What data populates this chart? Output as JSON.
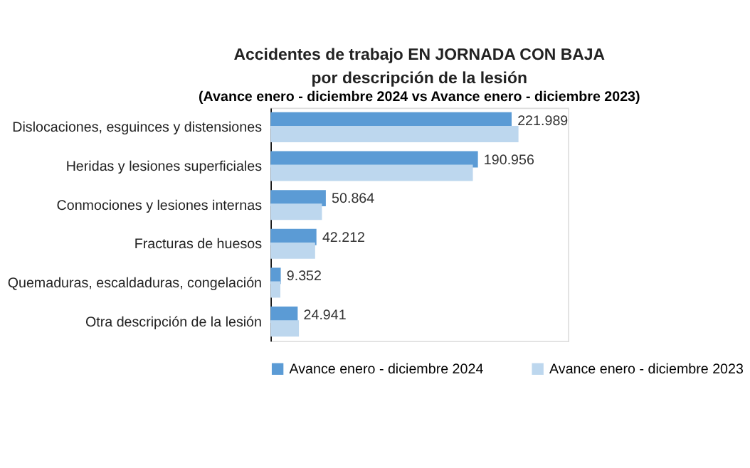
{
  "chart_data": {
    "type": "bar",
    "orientation": "horizontal",
    "title": "Accidentes de trabajo EN JORNADA CON BAJA\npor descripción de la lesión",
    "subtitle": "(Avance enero - diciembre 2024 vs Avance enero - diciembre 2023)",
    "categories": [
      "Dislocaciones, esguinces y distensiones",
      "Heridas y lesiones superficiales",
      "Conmociones y lesiones internas",
      "Fracturas de huesos",
      "Quemaduras, escaldaduras, congelación",
      "Otra descripción de la lesión"
    ],
    "series": [
      {
        "name": "Avance enero - diciembre 2024",
        "color": "#5b9bd5",
        "values": [
          221989,
          190956,
          50864,
          42212,
          9352,
          24941
        ],
        "value_labels": [
          "221.989",
          "190.956",
          "50.864",
          "42.212",
          "9.352",
          "24.941"
        ]
      },
      {
        "name": "Avance enero - diciembre 2023",
        "color": "#bdd7ee",
        "values": [
          228300,
          186300,
          47300,
          41000,
          9000,
          26100
        ]
      }
    ],
    "grid": false,
    "legend": "bottom"
  }
}
